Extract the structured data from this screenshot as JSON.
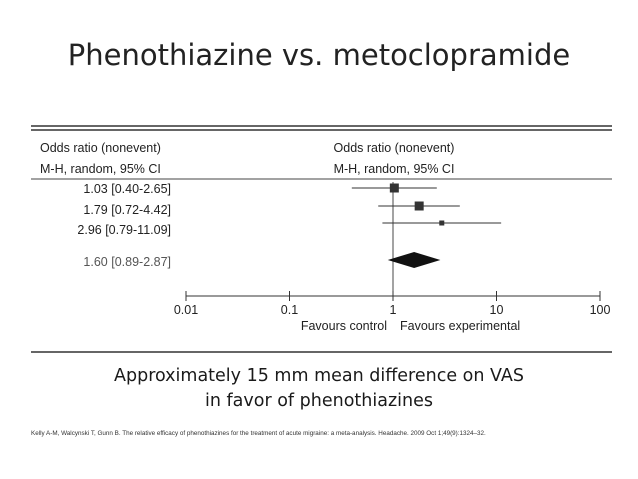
{
  "slide": {
    "title": "Phenothiazine vs. metoclopramide",
    "caption_line1": "Approximately 15 mm mean difference on VAS",
    "caption_line2": "in favor of phenothiazines",
    "citation": "Kelly A-M, Walcynski T, Gunn B. The relative efficacy of phenothiazines for the treatment of acute migraine: a meta-analysis. Headache. 2009 Oct 1;49(9):1324–32."
  },
  "chart_data": {
    "type": "forest",
    "scale": "log",
    "xlim": [
      0.01,
      100
    ],
    "left_header": [
      "Odds ratio (nonevent)",
      "M-H, random, 95% CI"
    ],
    "right_header": [
      "Odds ratio (nonevent)",
      "M-H, random, 95% CI"
    ],
    "studies": [
      {
        "label": "1.03 [0.40-2.65]",
        "or": 1.03,
        "lo": 0.4,
        "hi": 2.65
      },
      {
        "label": "1.79 [0.72-4.42]",
        "or": 1.79,
        "lo": 0.72,
        "hi": 4.42
      },
      {
        "label": "2.96 [0.79-11.09]",
        "or": 2.96,
        "lo": 0.79,
        "hi": 11.09
      }
    ],
    "pooled": {
      "label": "1.60 [0.89-2.87]",
      "or": 1.6,
      "lo": 0.89,
      "hi": 2.87
    },
    "ticks": [
      {
        "value": 0.01,
        "label": "0.01"
      },
      {
        "value": 0.1,
        "label": "0.1"
      },
      {
        "value": 1,
        "label": "1"
      },
      {
        "value": 10,
        "label": "10"
      },
      {
        "value": 100,
        "label": "100"
      }
    ],
    "favours_left": "Favours control",
    "favours_right": "Favours experimental"
  }
}
